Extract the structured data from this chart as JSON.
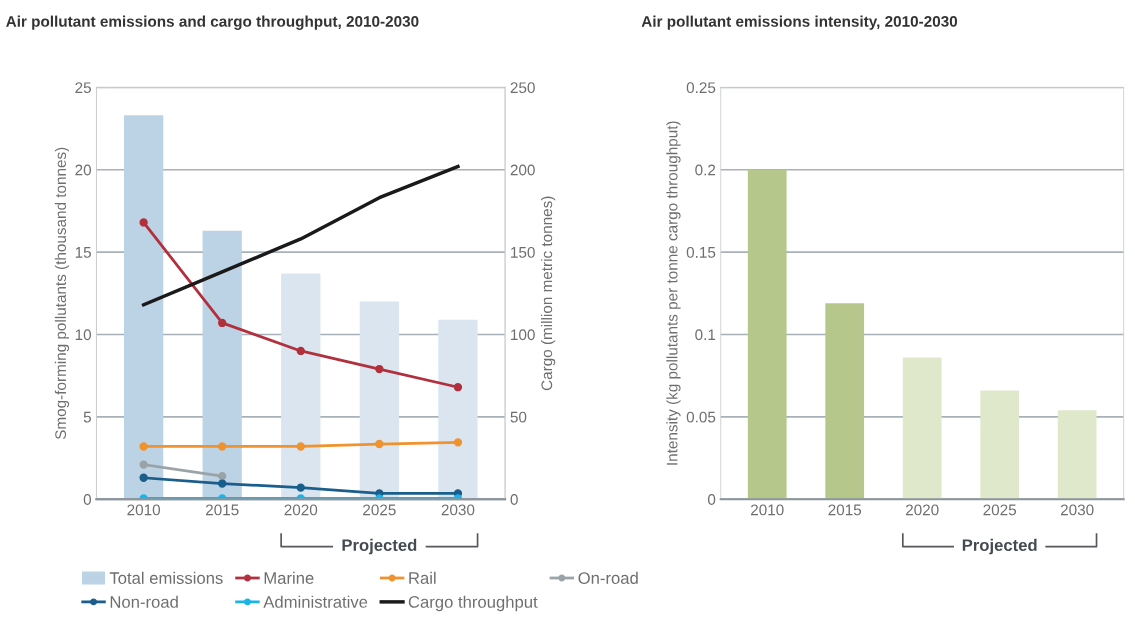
{
  "chart_data": [
    {
      "type": "line",
      "title": "Air pollutant emissions and cargo throughput, 2010-2030",
      "ylabel": "Smog-forming pollutants (thousand tonnes)",
      "y2label": "Cargo (million metric tonnes)",
      "categories": [
        "2010",
        "2015",
        "2020",
        "2025",
        "2030"
      ],
      "series": [
        {
          "name": "Total emissions",
          "type": "bar",
          "colors": [
            "#bcd3e6",
            "#bcd3e6",
            "#dae5f0",
            "#dae5f0",
            "#dae5f0"
          ],
          "color": "#bcd3e6",
          "values": [
            23.3,
            16.3,
            13.7,
            12.0,
            10.9
          ]
        },
        {
          "name": "Marine",
          "color": "#b2303d",
          "marker": "circle",
          "values": [
            16.8,
            10.7,
            9.0,
            7.9,
            6.8
          ]
        },
        {
          "name": "Rail",
          "color": "#f0922d",
          "marker": "circle",
          "values": [
            3.2,
            3.2,
            3.2,
            3.35,
            3.45
          ]
        },
        {
          "name": "On-road",
          "color": "#9aa3a8",
          "marker": "circle",
          "values": [
            2.1,
            1.4,
            null,
            null,
            null
          ]
        },
        {
          "name": "Non-road",
          "color": "#1a5e8c",
          "marker": "circle",
          "values": [
            1.3,
            0.95,
            0.7,
            0.35,
            0.35
          ]
        },
        {
          "name": "Administrative",
          "color": "#19b4e8",
          "marker": "circle",
          "values": [
            0.05,
            0.05,
            0.05,
            0.05,
            0.05
          ]
        },
        {
          "name": "Cargo throughput",
          "color": "#1a1a1a",
          "marker": "none",
          "axis": "y2",
          "values": [
            118,
            138,
            158,
            183,
            202
          ]
        }
      ],
      "ylim": [
        0,
        25
      ],
      "yticks": [
        0,
        5,
        10,
        15,
        20,
        25
      ],
      "y2lim": [
        0,
        250
      ],
      "y2ticks": [
        0,
        50,
        100,
        150,
        200,
        250
      ],
      "grid": "y",
      "legend": "bottom",
      "annotations": [
        "Projected"
      ]
    },
    {
      "type": "bar",
      "title": "Air pollutant emissions intensity, 2010-2030",
      "ylabel": "Intensity (kg pollutants per tonne cargo throughput)",
      "categories": [
        "2010",
        "2015",
        "2020",
        "2025",
        "2030"
      ],
      "values": [
        0.2,
        0.119,
        0.086,
        0.066,
        0.054
      ],
      "colors": [
        "#b5c78a",
        "#b5c78a",
        "#dfe8cb",
        "#dfe8cb",
        "#dfe8cb"
      ],
      "ylim": [
        0,
        0.25
      ],
      "yticks": [
        0,
        0.05,
        0.1,
        0.15,
        0.2,
        0.25
      ],
      "grid": "y",
      "annotations": [
        "Projected"
      ]
    }
  ]
}
